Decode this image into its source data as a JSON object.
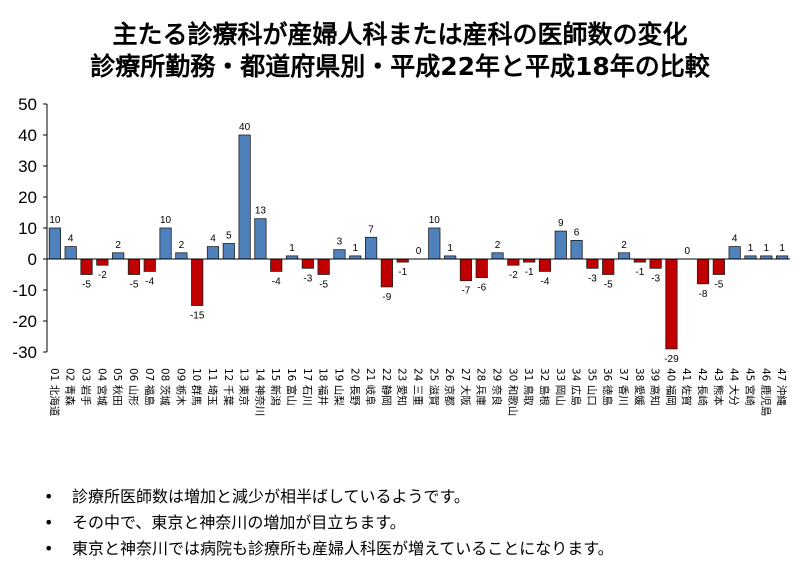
{
  "title_line1": "主たる診療科が産婦人科または産科の医師数の変化",
  "title_line2": "診療所勤務・都道府県別・平成22年と平成18年の比較",
  "bullets": [
    "診療所医師数は増加と減少が相半ばしているようです。",
    "その中で、東京と神奈川の増加が目立ちます。",
    "東京と神奈川では病院も診療所も産婦人科医が増えていることになります。"
  ],
  "colors": {
    "positive": "#4f81bd",
    "negative": "#c00000",
    "axis": "#000000"
  },
  "chart_data": {
    "type": "bar",
    "title": "",
    "xlabel": "",
    "ylabel": "",
    "ylim": [
      -30,
      50
    ],
    "yticks": [
      -30,
      -20,
      -10,
      0,
      10,
      20,
      30,
      40,
      50
    ],
    "grid": false,
    "legend": "none",
    "categories": [
      "01 北海道",
      "02 青森",
      "03 岩手",
      "04 宮城",
      "05 秋田",
      "06 山形",
      "07 福島",
      "08 茨城",
      "09 栃木",
      "10 群馬",
      "11 埼玉",
      "12 千葉",
      "13 東京",
      "14 神奈川",
      "15 新潟",
      "16 富山",
      "17 石川",
      "18 福井",
      "19 山梨",
      "20 長野",
      "21 岐阜",
      "22 静岡",
      "23 愛知",
      "24 三重",
      "25 滋賀",
      "26 京都",
      "27 大阪",
      "28 兵庫",
      "29 奈良",
      "30 和歌山",
      "31 鳥取",
      "32 島根",
      "33 岡山",
      "34 広島",
      "35 山口",
      "36 徳島",
      "37 香川",
      "38 愛媛",
      "39 高知",
      "40 福岡",
      "41 佐賀",
      "42 長崎",
      "43 熊本",
      "44 大分",
      "45 宮崎",
      "46 鹿児島",
      "47 沖縄"
    ],
    "values": [
      10,
      4,
      -5,
      -2,
      2,
      -5,
      -4,
      10,
      2,
      -15,
      4,
      5,
      40,
      13,
      -4,
      1,
      -3,
      -5,
      3,
      1,
      7,
      -9,
      -1,
      0,
      10,
      1,
      -7,
      -6,
      2,
      -2,
      -1,
      -4,
      9,
      6,
      -3,
      -5,
      2,
      -1,
      -3,
      -29,
      0,
      -8,
      -5,
      4,
      1,
      1,
      1
    ]
  }
}
